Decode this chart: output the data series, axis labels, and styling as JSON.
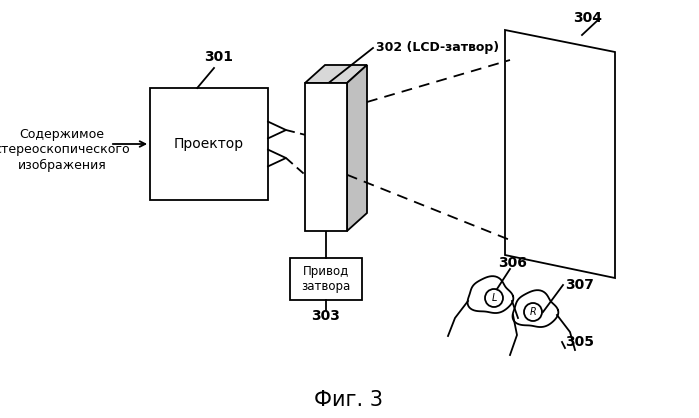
{
  "bg_color": "#ffffff",
  "title": "Фиг. 3",
  "title_fontsize": 15,
  "label_301": "301",
  "label_302": "302 (LCD-затвор)",
  "label_303": "303",
  "label_304": "304",
  "label_305": "305",
  "label_306": "306",
  "label_307": "307",
  "text_source": "Содержимое\nстереоскопического\nизображения",
  "text_projector": "Проектор",
  "text_drive": "Привод\nзатвора",
  "line_color": "#000000"
}
